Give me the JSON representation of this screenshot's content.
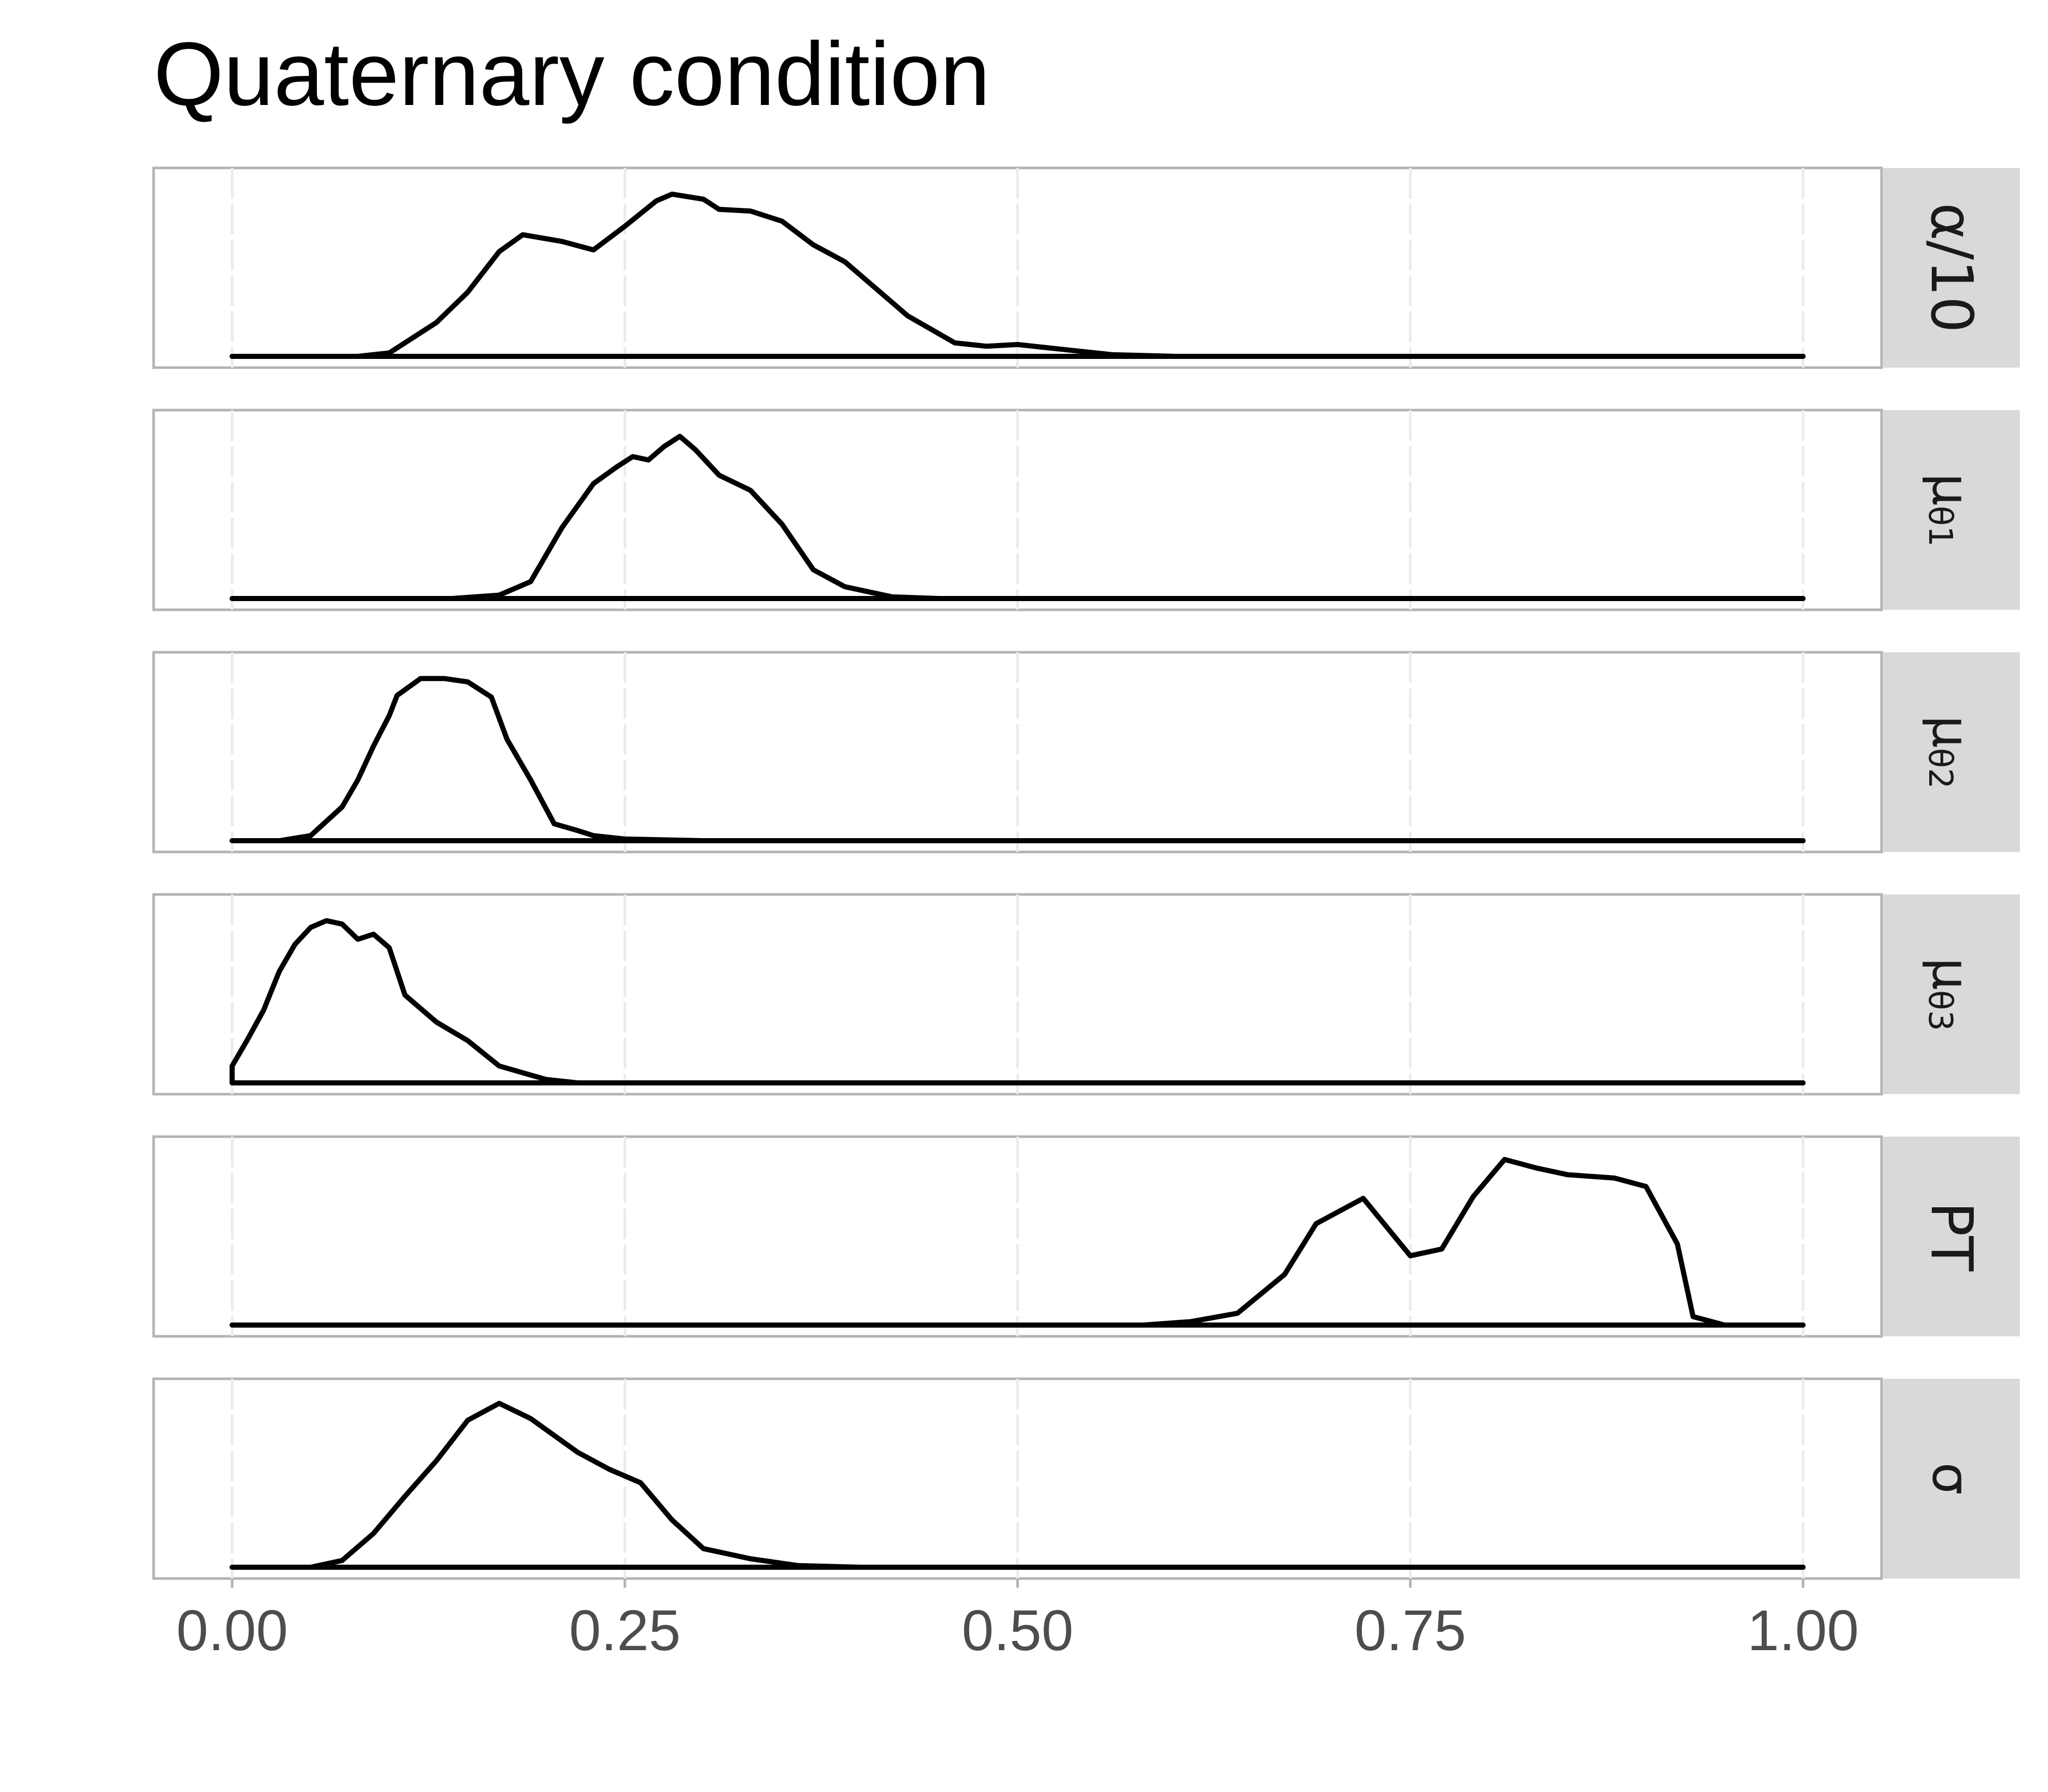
{
  "chart_data": {
    "type": "line",
    "title": "Quaternary condition",
    "xlabel": "",
    "ylabel": "",
    "xlim": [
      -0.05,
      1.05
    ],
    "x_ticks": [
      "0.00",
      "0.25",
      "0.50",
      "0.75",
      "1.00"
    ],
    "x_tick_values": [
      0,
      0.25,
      0.5,
      0.75,
      1.0
    ],
    "grid": true,
    "legend": "none",
    "panels": [
      {
        "label": "α/10",
        "base": "α/10",
        "sub": "",
        "points": [
          [
            0,
            0
          ],
          [
            0.08,
            0
          ],
          [
            0.1,
            0.02
          ],
          [
            0.13,
            0.2
          ],
          [
            0.15,
            0.38
          ],
          [
            0.17,
            0.62
          ],
          [
            0.185,
            0.72
          ],
          [
            0.21,
            0.68
          ],
          [
            0.23,
            0.63
          ],
          [
            0.25,
            0.77
          ],
          [
            0.27,
            0.92
          ],
          [
            0.28,
            0.96
          ],
          [
            0.3,
            0.93
          ],
          [
            0.31,
            0.87
          ],
          [
            0.33,
            0.86
          ],
          [
            0.35,
            0.8
          ],
          [
            0.37,
            0.66
          ],
          [
            0.39,
            0.56
          ],
          [
            0.41,
            0.4
          ],
          [
            0.43,
            0.24
          ],
          [
            0.46,
            0.08
          ],
          [
            0.48,
            0.06
          ],
          [
            0.5,
            0.07
          ],
          [
            0.53,
            0.04
          ],
          [
            0.56,
            0.01
          ],
          [
            0.6,
            0
          ],
          [
            1.0,
            0
          ]
        ]
      },
      {
        "label": "μθ₁",
        "base": "μ",
        "sub": "θ1",
        "points": [
          [
            0,
            0
          ],
          [
            0.14,
            0
          ],
          [
            0.17,
            0.02
          ],
          [
            0.19,
            0.1
          ],
          [
            0.21,
            0.42
          ],
          [
            0.23,
            0.68
          ],
          [
            0.245,
            0.78
          ],
          [
            0.255,
            0.84
          ],
          [
            0.265,
            0.82
          ],
          [
            0.275,
            0.9
          ],
          [
            0.285,
            0.96
          ],
          [
            0.295,
            0.88
          ],
          [
            0.31,
            0.73
          ],
          [
            0.33,
            0.64
          ],
          [
            0.35,
            0.44
          ],
          [
            0.37,
            0.17
          ],
          [
            0.39,
            0.07
          ],
          [
            0.42,
            0.01
          ],
          [
            0.45,
            0
          ],
          [
            1.0,
            0
          ]
        ]
      },
      {
        "label": "μθ₂",
        "base": "μ",
        "sub": "θ2",
        "points": [
          [
            0,
            0
          ],
          [
            0.03,
            0
          ],
          [
            0.05,
            0.03
          ],
          [
            0.07,
            0.2
          ],
          [
            0.08,
            0.36
          ],
          [
            0.09,
            0.56
          ],
          [
            0.1,
            0.74
          ],
          [
            0.105,
            0.86
          ],
          [
            0.12,
            0.96
          ],
          [
            0.135,
            0.96
          ],
          [
            0.15,
            0.94
          ],
          [
            0.165,
            0.85
          ],
          [
            0.175,
            0.6
          ],
          [
            0.19,
            0.36
          ],
          [
            0.205,
            0.1
          ],
          [
            0.22,
            0.06
          ],
          [
            0.23,
            0.03
          ],
          [
            0.25,
            0.01
          ],
          [
            0.3,
            0
          ],
          [
            1.0,
            0
          ]
        ]
      },
      {
        "label": "μθ₃",
        "base": "μ",
        "sub": "θ3",
        "points": [
          [
            0,
            0
          ],
          [
            0,
            0.1
          ],
          [
            0.01,
            0.26
          ],
          [
            0.02,
            0.43
          ],
          [
            0.03,
            0.66
          ],
          [
            0.04,
            0.82
          ],
          [
            0.05,
            0.92
          ],
          [
            0.06,
            0.96
          ],
          [
            0.07,
            0.94
          ],
          [
            0.08,
            0.85
          ],
          [
            0.09,
            0.88
          ],
          [
            0.1,
            0.8
          ],
          [
            0.11,
            0.52
          ],
          [
            0.13,
            0.36
          ],
          [
            0.15,
            0.25
          ],
          [
            0.17,
            0.1
          ],
          [
            0.2,
            0.02
          ],
          [
            0.22,
            0
          ],
          [
            1.0,
            0
          ]
        ]
      },
      {
        "label": "PT",
        "base": "PT",
        "sub": "",
        "points": [
          [
            0,
            0
          ],
          [
            0.58,
            0
          ],
          [
            0.61,
            0.02
          ],
          [
            0.64,
            0.07
          ],
          [
            0.67,
            0.3
          ],
          [
            0.69,
            0.6
          ],
          [
            0.72,
            0.75
          ],
          [
            0.75,
            0.41
          ],
          [
            0.77,
            0.45
          ],
          [
            0.79,
            0.76
          ],
          [
            0.81,
            0.98
          ],
          [
            0.83,
            0.93
          ],
          [
            0.85,
            0.89
          ],
          [
            0.88,
            0.87
          ],
          [
            0.9,
            0.82
          ],
          [
            0.92,
            0.48
          ],
          [
            0.93,
            0.05
          ],
          [
            0.95,
            0
          ],
          [
            1.0,
            0
          ]
        ]
      },
      {
        "label": "σ",
        "base": "σ",
        "sub": "",
        "points": [
          [
            0,
            0
          ],
          [
            0.05,
            0
          ],
          [
            0.07,
            0.04
          ],
          [
            0.09,
            0.2
          ],
          [
            0.11,
            0.42
          ],
          [
            0.13,
            0.63
          ],
          [
            0.15,
            0.87
          ],
          [
            0.17,
            0.97
          ],
          [
            0.19,
            0.88
          ],
          [
            0.22,
            0.68
          ],
          [
            0.24,
            0.58
          ],
          [
            0.26,
            0.5
          ],
          [
            0.28,
            0.28
          ],
          [
            0.3,
            0.11
          ],
          [
            0.33,
            0.05
          ],
          [
            0.36,
            0.01
          ],
          [
            0.4,
            0
          ],
          [
            1.0,
            0
          ]
        ]
      }
    ]
  }
}
